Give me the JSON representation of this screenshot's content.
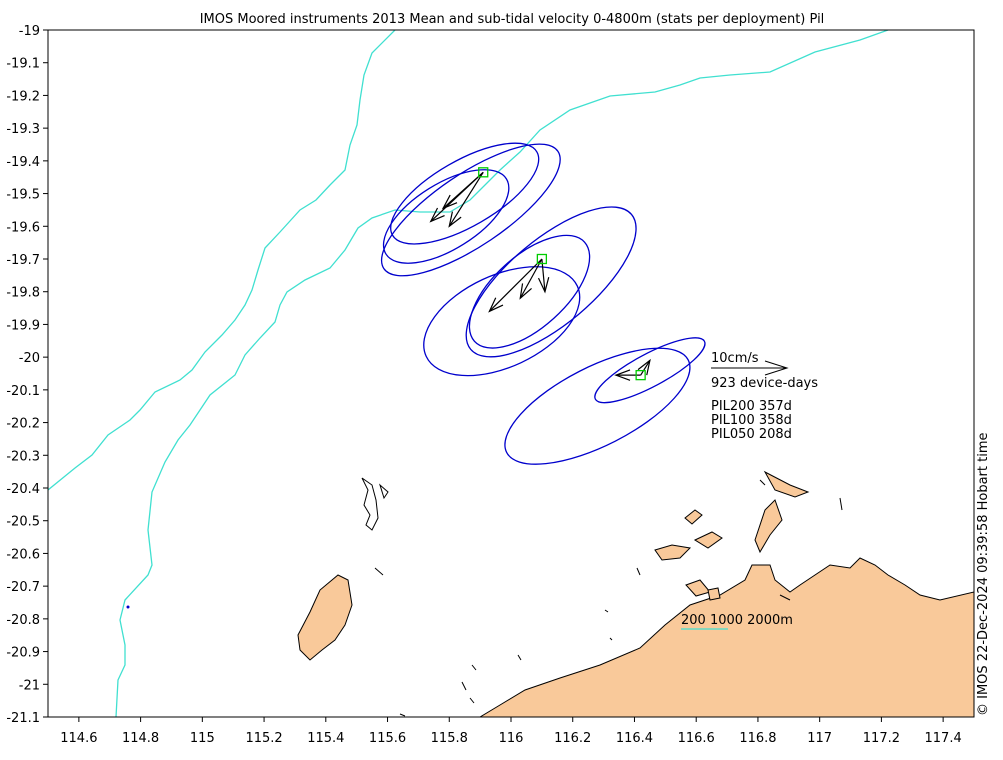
{
  "title": "IMOS Moored instruments 2013 Mean and sub-tidal velocity 0-4800m (stats per deployment) Pil",
  "credit": "© IMOS 22-Dec-2024 09:39:58 Hobart time",
  "colors": {
    "land": "#f9c99a",
    "coastline": "#000000",
    "isobath": "#40e0d0",
    "ellipse": "#0000cc",
    "arrow": "#000000",
    "mooring": "#00cc00"
  },
  "chart_data": {
    "type": "map",
    "xlim": [
      114.5,
      117.5
    ],
    "ylim": [
      -21.1,
      -19
    ],
    "x_ticks": [
      114.6,
      114.8,
      115,
      115.2,
      115.4,
      115.6,
      115.8,
      116,
      116.2,
      116.4,
      116.6,
      116.8,
      117,
      117.2,
      117.4
    ],
    "x_tick_labels": [
      "114.6",
      "114.8",
      "115",
      "115.2",
      "115.4",
      "115.6",
      "115.8",
      "116",
      "116.2",
      "116.4",
      "116.6",
      "116.8",
      "117",
      "117.2",
      "117.4"
    ],
    "y_ticks": [
      -19,
      -19.1,
      -19.2,
      -19.3,
      -19.4,
      -19.5,
      -19.6,
      -19.7,
      -19.8,
      -19.9,
      -20,
      -20.1,
      -20.2,
      -20.3,
      -20.4,
      -20.5,
      -20.6,
      -20.7,
      -20.8,
      -20.9,
      -21,
      -21.1
    ],
    "y_tick_labels": [
      "-19",
      "-19.1",
      "-19.2",
      "-19.3",
      "-19.4",
      "-19.5",
      "-19.6",
      "-19.7",
      "-19.8",
      "-19.9",
      "-20",
      "-20.1",
      "-20.2",
      "-20.3",
      "-20.4",
      "-20.5",
      "-20.6",
      "-20.7",
      "-20.8",
      "-20.9",
      "-21",
      "-21.1"
    ],
    "moorings": [
      {
        "lon": 115.91,
        "lat": -19.435,
        "arrows": [
          {
            "lon": 115.74,
            "lat": -19.585
          },
          {
            "lon": 115.78,
            "lat": -19.545
          },
          {
            "lon": 115.8,
            "lat": -19.6
          }
        ],
        "ellipses": [
          {
            "lon": 115.85,
            "lat": -19.5,
            "a": 0.27,
            "b": 0.1,
            "angle": -30
          },
          {
            "lon": 115.79,
            "lat": -19.57,
            "a": 0.23,
            "b": 0.1,
            "angle": -32
          },
          {
            "lon": 115.87,
            "lat": -19.55,
            "a": 0.34,
            "b": 0.11,
            "angle": -34
          }
        ]
      },
      {
        "lon": 116.1,
        "lat": -19.7,
        "arrows": [
          {
            "lon": 115.93,
            "lat": -19.86
          },
          {
            "lon": 116.03,
            "lat": -19.82
          },
          {
            "lon": 116.11,
            "lat": -19.8
          }
        ],
        "ellipses": [
          {
            "lon": 116.13,
            "lat": -19.77,
            "a": 0.34,
            "b": 0.13,
            "angle": -40
          },
          {
            "lon": 116.06,
            "lat": -19.8,
            "a": 0.24,
            "b": 0.11,
            "angle": -42
          },
          {
            "lon": 115.97,
            "lat": -19.89,
            "a": 0.27,
            "b": 0.14,
            "angle": -25
          }
        ]
      },
      {
        "lon": 116.42,
        "lat": -20.055,
        "arrows": [
          {
            "lon": 116.34,
            "lat": -20.055
          },
          {
            "lon": 116.45,
            "lat": -20.01
          }
        ],
        "ellipses": [
          {
            "lon": 116.28,
            "lat": -20.15,
            "a": 0.33,
            "b": 0.12,
            "angle": -27
          },
          {
            "lon": 116.45,
            "lat": -20.04,
            "a": 0.2,
            "b": 0.05,
            "angle": -28
          }
        ]
      }
    ],
    "scale_vector": {
      "label": "10cm/s",
      "sublabel": "923 device-days"
    },
    "deployments": [
      "PIL200 357d",
      "PIL100 358d",
      "PIL050 208d"
    ],
    "isobath_label": "200 1000 2000m"
  }
}
